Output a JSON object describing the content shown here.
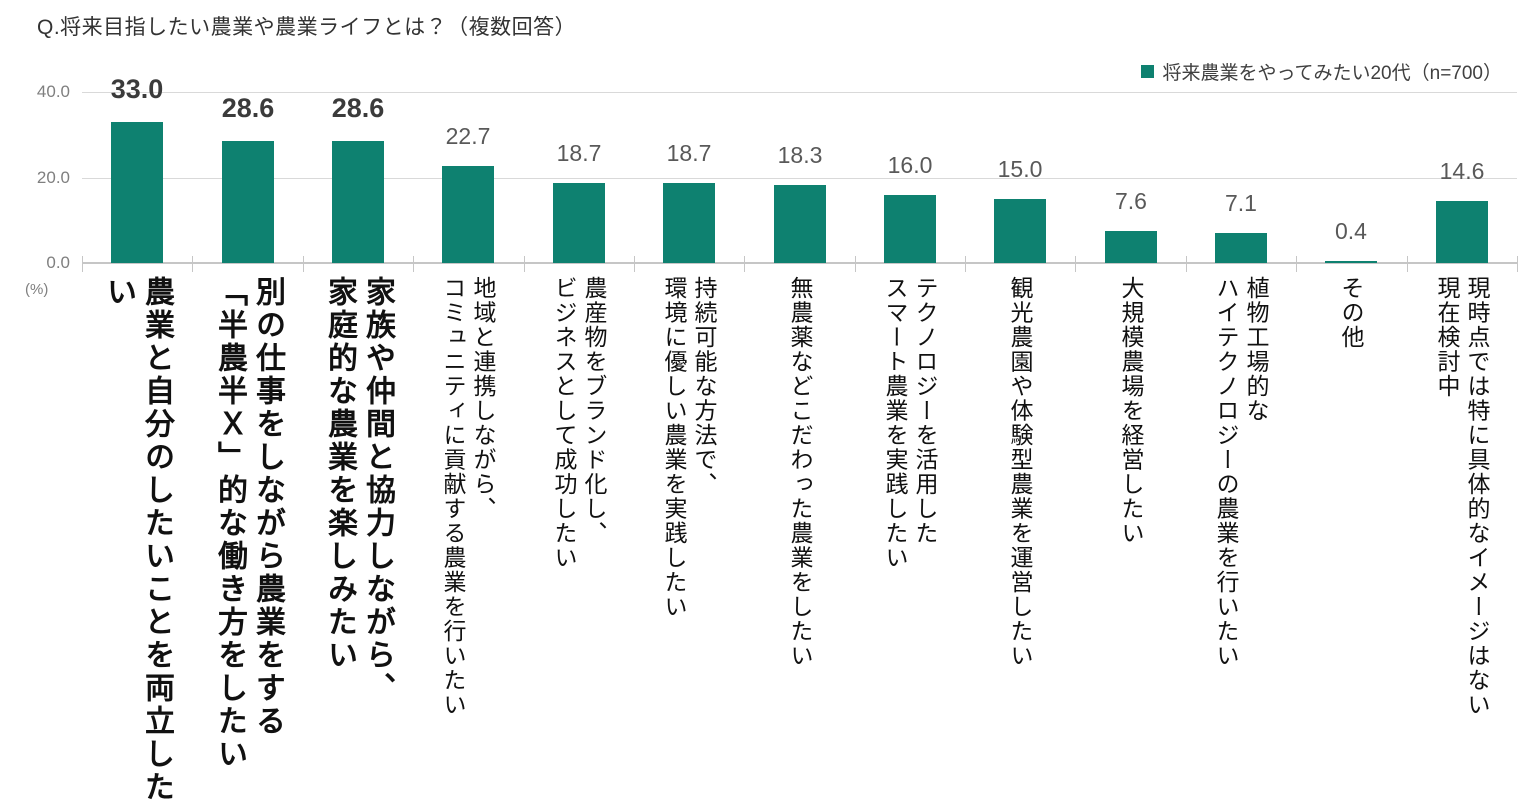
{
  "colors": {
    "background": "#FFFFFF",
    "bar": "#0E8170",
    "grid": "#D9D9D9",
    "axis": "#C6C6C6",
    "axis_label": "#7F7F7F",
    "value_label": "#595959",
    "value_label_bold": "#3B3B3B",
    "category_label": "#111111",
    "title": "#333333",
    "legend_text": "#404040"
  },
  "header": {
    "title": "Q.将来目指したい農業や農業ライフとは？（複数回答）"
  },
  "legend": {
    "label": "将来農業をやってみたい20代（n=700）",
    "marker_color": "#0E8170"
  },
  "chart_data": {
    "type": "bar",
    "title": "Q.将来目指したい農業や農業ライフとは？（複数回答）",
    "legend_entries": [
      "将来農業をやってみたい20代（n=700）"
    ],
    "legend_position": "top-right",
    "ylabel": "(%)",
    "ylim": [
      0,
      40
    ],
    "yticks": [
      0,
      20,
      40
    ],
    "ytick_labels": [
      "0.0",
      "20.0",
      "40.0"
    ],
    "grid": true,
    "bar_color": "#0E8170",
    "values": [
      33.0,
      28.6,
      28.6,
      22.7,
      18.7,
      18.7,
      18.3,
      16.0,
      15.0,
      7.6,
      7.1,
      0.4,
      14.6
    ],
    "emphasized": [
      true,
      true,
      true,
      false,
      false,
      false,
      false,
      false,
      false,
      false,
      false,
      false,
      false
    ],
    "categories": [
      "農業と自分のしたいことを両立したい",
      "別の仕事をしながら農業をする「半農半Ｘ」的な働き方をしたい",
      "家族や仲間と協力しながら、家庭的な農業を楽しみたい",
      "地域と連携しながら、コミュニティに貢献する農業を行いたい",
      "農産物をブランド化し、ビジネスとして成功したい",
      "持続可能な方法で、環境に優しい農業を実践したい",
      "無農薬などこだわった農業をしたい",
      "テクノロジーを活用したスマート農業を実践したい",
      "観光農園や体験型農業を運営したい",
      "大規模農場を経営したい",
      "植物工場的なハイテクノロジーの農業を行いたい",
      "その他",
      "現時点では特に具体的なイメージはない 現在検討中"
    ],
    "category_lines": [
      [
        "農業と自分のしたいことを両立したい"
      ],
      [
        "別の仕事をしながら農業をする",
        "「半農半Ｘ」的な働き方をしたい"
      ],
      [
        "家族や仲間と協力しながら、",
        "家庭的な農業を楽しみたい"
      ],
      [
        "地域と連携しながら、",
        "コミュニティに貢献する農業を行いたい"
      ],
      [
        "農産物をブランド化し、",
        "ビジネスとして成功したい"
      ],
      [
        "持続可能な方法で、",
        "環境に優しい農業を実践したい"
      ],
      [
        "無農薬などこだわった農業をしたい"
      ],
      [
        "テクノロジーを活用した",
        "スマート農業を実践したい"
      ],
      [
        "観光農園や体験型農業を運営したい"
      ],
      [
        "大規模農場を経営したい"
      ],
      [
        "植物工場的な",
        "ハイテクノロジーの農業を行いたい"
      ],
      [
        "その他"
      ],
      [
        "現時点では特に具体的なイメージはない",
        "現在検討中"
      ]
    ]
  }
}
